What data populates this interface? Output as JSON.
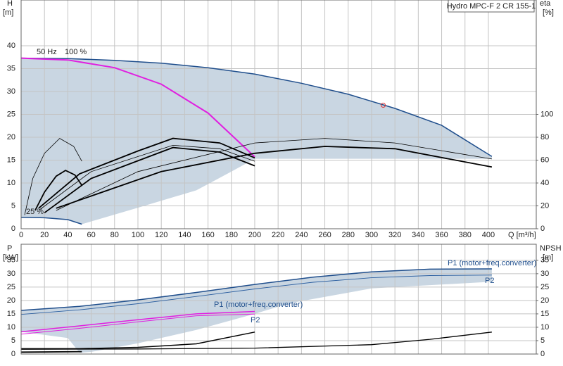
{
  "chart_data": [
    {
      "type": "line",
      "grid": true,
      "label_box": "Hydro MPC-F 2 CR 155-1",
      "xlabel": "Q [m³/h]",
      "ylabel": "H",
      "yunit": "[m]",
      "y2label": "eta",
      "y2unit": "[%]",
      "annotations": [
        "50 Hz",
        "100 %",
        "25 %"
      ],
      "xlim": [
        0,
        441
      ],
      "xticks": [
        0,
        20,
        40,
        60,
        80,
        100,
        120,
        140,
        160,
        180,
        200,
        220,
        240,
        260,
        280,
        300,
        320,
        340,
        360,
        380,
        400
      ],
      "ylim": [
        0,
        50
      ],
      "yticks": [
        0,
        5,
        10,
        15,
        20,
        25,
        30,
        35,
        40
      ],
      "y2lim": [
        0,
        200
      ],
      "y2ticks": [
        0,
        20,
        40,
        60,
        80,
        100
      ],
      "series": [
        {
          "style": "area",
          "color": "#c9d6e2",
          "x": [
            0,
            40,
            80,
            120,
            160,
            200,
            240,
            280,
            320,
            360,
            403,
            403,
            200,
            180,
            150,
            100,
            52,
            40,
            20,
            0
          ],
          "values": [
            37.3,
            37.2,
            36.8,
            36.2,
            35.2,
            33.8,
            31.8,
            29.4,
            26.3,
            22.6,
            15.8,
            15.3,
            15.3,
            12.5,
            8.4,
            4.6,
            1.0,
            2.0,
            2.4,
            2.5
          ]
        },
        {
          "style": "line",
          "color": "#1f4e8c",
          "width": 1.5,
          "x": [
            0,
            40,
            80,
            120,
            160,
            200,
            240,
            280,
            320,
            360,
            403
          ],
          "values": [
            37.3,
            37.2,
            36.8,
            36.2,
            35.2,
            33.8,
            31.8,
            29.4,
            26.3,
            22.6,
            15.8
          ]
        },
        {
          "style": "line",
          "color": "#e020e0",
          "width": 2,
          "x": [
            0,
            40,
            80,
            120,
            160,
            200
          ],
          "values": [
            37.3,
            36.9,
            35.2,
            31.6,
            25.3,
            15.7
          ]
        },
        {
          "style": "line",
          "color": "#1f4e8c",
          "width": 1.5,
          "x": [
            0,
            20,
            40,
            52
          ],
          "values": [
            2.5,
            2.4,
            2.0,
            1.0
          ]
        },
        {
          "style": "line",
          "color": "#000000",
          "width": 0.8,
          "axis": "y2",
          "x": [
            3,
            10,
            20,
            33,
            45,
            52
          ],
          "values": [
            12,
            44,
            66,
            79,
            72,
            59
          ]
        },
        {
          "style": "line",
          "color": "#000000",
          "width": 1.8,
          "axis": "y2",
          "x": [
            12,
            20,
            30,
            38,
            46,
            52
          ],
          "values": [
            16,
            32,
            46,
            51,
            47,
            38
          ]
        },
        {
          "style": "line",
          "color": "#000000",
          "width": 1.8,
          "axis": "y2",
          "x": [
            15,
            50,
            100,
            130,
            170,
            200
          ],
          "values": [
            18,
            48,
            68,
            79,
            75,
            62
          ]
        },
        {
          "style": "line",
          "color": "#000000",
          "width": 0.8,
          "axis": "y2",
          "x": [
            15,
            60,
            130,
            170,
            200
          ],
          "values": [
            16,
            50,
            73,
            70,
            59
          ]
        },
        {
          "style": "line",
          "color": "#000000",
          "width": 1.8,
          "axis": "y2",
          "x": [
            20,
            60,
            130,
            170,
            200
          ],
          "values": [
            14,
            44,
            71,
            67,
            55
          ]
        },
        {
          "style": "line",
          "color": "#000000",
          "width": 0.8,
          "axis": "y2",
          "x": [
            30,
            100,
            200,
            260,
            320,
            403
          ],
          "values": [
            16,
            50,
            75,
            79,
            75,
            61
          ]
        },
        {
          "style": "line",
          "color": "#000000",
          "width": 1.8,
          "axis": "y2",
          "x": [
            30,
            120,
            200,
            260,
            320,
            403
          ],
          "values": [
            18,
            50,
            66,
            72,
            70,
            54
          ]
        },
        {
          "style": "marker",
          "color": "#e03030",
          "x": [
            310
          ],
          "values": [
            27
          ]
        }
      ]
    },
    {
      "type": "line",
      "grid": true,
      "ylabel": "P",
      "yunit": "[kW]",
      "y2label": "NPSH",
      "y2unit": "[m]",
      "annotations": [
        "P1 (motor+freq.converter)",
        "P2",
        "P1 (motor+freq.converter)",
        "P2"
      ],
      "xlim": [
        0,
        441
      ],
      "xticks": [
        0,
        20,
        40,
        60,
        80,
        100,
        120,
        140,
        160,
        180,
        200,
        220,
        240,
        260,
        280,
        300,
        320,
        340,
        360,
        380,
        400
      ],
      "ylim": [
        0,
        41
      ],
      "yticks": [
        0,
        5,
        10,
        15,
        20,
        25,
        30,
        35
      ],
      "y2lim": [
        0,
        41
      ],
      "y2ticks": [
        0,
        5,
        10,
        15,
        20,
        25,
        30,
        35
      ],
      "series": [
        {
          "style": "area",
          "color": "#c9d6e2",
          "x": [
            0,
            50,
            100,
            150,
            200,
            250,
            300,
            350,
            403,
            403,
            300,
            230,
            200,
            150,
            100,
            60,
            50,
            40,
            0
          ],
          "values": [
            16.3,
            17.8,
            20.2,
            23,
            26,
            28.7,
            30.7,
            31.7,
            31.8,
            27,
            24.5,
            19,
            15,
            9,
            4,
            0.8,
            0.5,
            6,
            8.3
          ]
        },
        {
          "style": "line",
          "color": "#1f4e8c",
          "width": 1.5,
          "x": [
            0,
            50,
            100,
            150,
            200,
            250,
            300,
            350,
            403
          ],
          "values": [
            16.3,
            17.8,
            20.2,
            23,
            26,
            28.7,
            30.7,
            31.7,
            31.8
          ]
        },
        {
          "style": "line",
          "color": "#2c5fa0",
          "width": 0.9,
          "x": [
            0,
            50,
            100,
            150,
            200,
            250,
            300,
            350,
            403
          ],
          "values": [
            14.8,
            16.5,
            18.8,
            21.5,
            24.3,
            26.8,
            28.5,
            29.3,
            29.5
          ]
        },
        {
          "style": "line",
          "color": "#e020e0",
          "width": 1.5,
          "x": [
            0,
            50,
            100,
            150,
            200
          ],
          "values": [
            8.3,
            10.5,
            12.8,
            15,
            15.9
          ]
        },
        {
          "style": "line",
          "color": "#e020e0",
          "width": 1,
          "x": [
            0,
            50,
            100,
            150,
            200
          ],
          "values": [
            7.4,
            9.6,
            12,
            14.3,
            14.9
          ]
        },
        {
          "style": "line",
          "color": "#000000",
          "width": 1.5,
          "axis": "y2",
          "x": [
            0,
            50,
            100,
            150,
            200
          ],
          "values": [
            2,
            2,
            2.5,
            3.8,
            8.2
          ]
        },
        {
          "style": "line",
          "color": "#000000",
          "width": 1.3,
          "axis": "y2",
          "x": [
            0,
            100,
            200,
            300,
            350,
            403
          ],
          "values": [
            1.8,
            1.9,
            2.2,
            3.5,
            5.5,
            8.2
          ]
        },
        {
          "style": "line",
          "color": "#000000",
          "width": 1.8,
          "axis": "y2",
          "x": [
            0,
            52
          ],
          "values": [
            0.7,
            0.9
          ]
        }
      ]
    }
  ]
}
